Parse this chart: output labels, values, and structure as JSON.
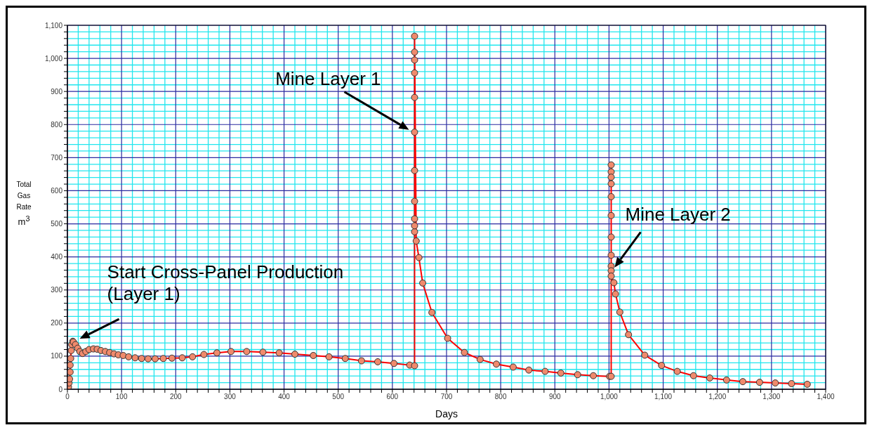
{
  "chart_data": {
    "type": "line",
    "xlabel": "Days",
    "ylabel": "Total\nGas\nRate\nm$^{3}$",
    "x": [
      1,
      2,
      3,
      4,
      5,
      5,
      6,
      7,
      8,
      10,
      11,
      15,
      19,
      23,
      28,
      34,
      40,
      48,
      55,
      62,
      70,
      78,
      86,
      94,
      103,
      113,
      125,
      137,
      149,
      162,
      177,
      193,
      212,
      231,
      252,
      276,
      302,
      331,
      361,
      391,
      420,
      454,
      483,
      513,
      543,
      573,
      603,
      632,
      641,
      641,
      641,
      641,
      641,
      641,
      641,
      641,
      641,
      641,
      641,
      641,
      644,
      649,
      656,
      673,
      702,
      733,
      762,
      792,
      823,
      852,
      882,
      911,
      942,
      971,
      1001,
      1004,
      1004,
      1004,
      1004,
      1004,
      1004,
      1004,
      1004,
      1004,
      1004,
      1004,
      1004,
      1009,
      1012,
      1020,
      1036,
      1066,
      1097,
      1126,
      1156,
      1186,
      1217,
      1247,
      1278,
      1307,
      1337,
      1366
    ],
    "series": [
      {
        "color": "#ff0000",
        "values": [
          0,
          7,
          19,
          31,
          52,
          73,
          93,
          117,
          135,
          145,
          143,
          135,
          124,
          114,
          108,
          114,
          120,
          122,
          121,
          117,
          114,
          111,
          107,
          104,
          102,
          98,
          95,
          93,
          92,
          92,
          93,
          94,
          95,
          98,
          105,
          110,
          114,
          114,
          112,
          110,
          106,
          102,
          98,
          93,
          86,
          83,
          78,
          73,
          71,
          476,
          494,
          515,
          568,
          661,
          777,
          882,
          956,
          995,
          1019,
          1067,
          448,
          398,
          321,
          232,
          154,
          111,
          90,
          76,
          67,
          58,
          54,
          49,
          44,
          41,
          39,
          39,
          678,
          657,
          641,
          621,
          582,
          525,
          460,
          405,
          372,
          358,
          342,
          322,
          288,
          233,
          165,
          103,
          72,
          54,
          41,
          34,
          28,
          23,
          21,
          19,
          17,
          15
        ]
      }
    ],
    "xlim": [
      0,
      1400
    ],
    "xticks": [
      0,
      {
        "value": 20,
        "label": null
      },
      {
        "value": 40,
        "label": null
      },
      {
        "value": 60,
        "label": null
      },
      {
        "value": 80,
        "label": null
      },
      100,
      {
        "value": 120,
        "label": null
      },
      {
        "value": 140,
        "label": null
      },
      {
        "value": 160,
        "label": null
      },
      {
        "value": 180,
        "label": null
      },
      200,
      {
        "value": 220,
        "label": null
      },
      {
        "value": 240,
        "label": null
      },
      {
        "value": 260,
        "label": null
      },
      {
        "value": 280,
        "label": null
      },
      300,
      {
        "value": 320,
        "label": null
      },
      {
        "value": 340,
        "label": null
      },
      {
        "value": 360,
        "label": null
      },
      {
        "value": 380,
        "label": null
      },
      400,
      {
        "value": 420,
        "label": null
      },
      {
        "value": 440,
        "label": null
      },
      {
        "value": 460,
        "label": null
      },
      {
        "value": 480,
        "label": null
      },
      500,
      {
        "value": 520,
        "label": null
      },
      {
        "value": 540,
        "label": null
      },
      {
        "value": 560,
        "label": null
      },
      {
        "value": 580,
        "label": null
      },
      600,
      {
        "value": 620,
        "label": null
      },
      {
        "value": 640,
        "label": null
      },
      {
        "value": 660,
        "label": null
      },
      {
        "value": 680,
        "label": null
      },
      700,
      {
        "value": 720,
        "label": null
      },
      {
        "value": 740,
        "label": null
      },
      {
        "value": 760,
        "label": null
      },
      {
        "value": 780,
        "label": null
      },
      800,
      {
        "value": 820,
        "label": null
      },
      {
        "value": 840,
        "label": null
      },
      {
        "value": 860,
        "label": null
      },
      {
        "value": 880,
        "label": null
      },
      900,
      {
        "value": 920,
        "label": null
      },
      {
        "value": 940,
        "label": null
      },
      {
        "value": 960,
        "label": null
      },
      {
        "value": 980,
        "label": null
      },
      {
        "value": 1000,
        "label": "1,000"
      },
      {
        "value": 1020,
        "label": null
      },
      {
        "value": 1040,
        "label": null
      },
      {
        "value": 1060,
        "label": null
      },
      {
        "value": 1080,
        "label": null
      },
      {
        "value": 1100,
        "label": "1,100"
      },
      {
        "value": 1120,
        "label": null
      },
      {
        "value": 1140,
        "label": null
      },
      {
        "value": 1160,
        "label": null
      },
      {
        "value": 1180,
        "label": null
      },
      {
        "value": 1200,
        "label": "1,200"
      },
      {
        "value": 1220,
        "label": null
      },
      {
        "value": 1240,
        "label": null
      },
      {
        "value": 1260,
        "label": null
      },
      {
        "value": 1280,
        "label": null
      },
      {
        "value": 1300,
        "label": "1,300"
      },
      {
        "value": 1320,
        "label": null
      },
      {
        "value": 1340,
        "label": null
      },
      {
        "value": 1360,
        "label": null
      },
      {
        "value": 1380,
        "label": null
      },
      {
        "value": 1400,
        "label": "1,400"
      }
    ],
    "ylim": [
      0,
      1100
    ],
    "yticks": [
      0,
      {
        "value": 20,
        "label": null
      },
      {
        "value": 40,
        "label": null
      },
      {
        "value": 60,
        "label": null
      },
      {
        "value": 80,
        "label": null
      },
      100,
      {
        "value": 120,
        "label": null
      },
      {
        "value": 140,
        "label": null
      },
      {
        "value": 160,
        "label": null
      },
      {
        "value": 180,
        "label": null
      },
      200,
      {
        "value": 220,
        "label": null
      },
      {
        "value": 240,
        "label": null
      },
      {
        "value": 260,
        "label": null
      },
      {
        "value": 280,
        "label": null
      },
      300,
      {
        "value": 320,
        "label": null
      },
      {
        "value": 340,
        "label": null
      },
      {
        "value": 360,
        "label": null
      },
      {
        "value": 380,
        "label": null
      },
      400,
      {
        "value": 420,
        "label": null
      },
      {
        "value": 440,
        "label": null
      },
      {
        "value": 460,
        "label": null
      },
      {
        "value": 480,
        "label": null
      },
      500,
      {
        "value": 520,
        "label": null
      },
      {
        "value": 540,
        "label": null
      },
      {
        "value": 560,
        "label": null
      },
      {
        "value": 580,
        "label": null
      },
      600,
      {
        "value": 620,
        "label": null
      },
      {
        "value": 640,
        "label": null
      },
      {
        "value": 660,
        "label": null
      },
      {
        "value": 680,
        "label": null
      },
      700,
      {
        "value": 720,
        "label": null
      },
      {
        "value": 740,
        "label": null
      },
      {
        "value": 760,
        "label": null
      },
      {
        "value": 780,
        "label": null
      },
      800,
      {
        "value": 820,
        "label": null
      },
      {
        "value": 840,
        "label": null
      },
      {
        "value": 860,
        "label": null
      },
      {
        "value": 880,
        "label": null
      },
      900,
      {
        "value": 920,
        "label": null
      },
      {
        "value": 940,
        "label": null
      },
      {
        "value": 960,
        "label": null
      },
      {
        "value": 980,
        "label": null
      },
      {
        "value": 1000,
        "label": "1,000"
      },
      {
        "value": 1020,
        "label": null
      },
      {
        "value": 1040,
        "label": null
      },
      {
        "value": 1060,
        "label": null
      },
      {
        "value": 1080,
        "label": null
      },
      {
        "value": 1100,
        "label": "1,100"
      }
    ],
    "grid": true,
    "marker": "circle",
    "line_style": "solid",
    "annotations": [
      {
        "text": "Start Cross-Panel Production\n(Layer 1)",
        "x": 15,
        "y": 140
      },
      {
        "text": "Mine Layer 1",
        "x": 641,
        "y": 780
      },
      {
        "text": "Mine Layer 2",
        "x": 1004,
        "y": 360
      }
    ]
  }
}
